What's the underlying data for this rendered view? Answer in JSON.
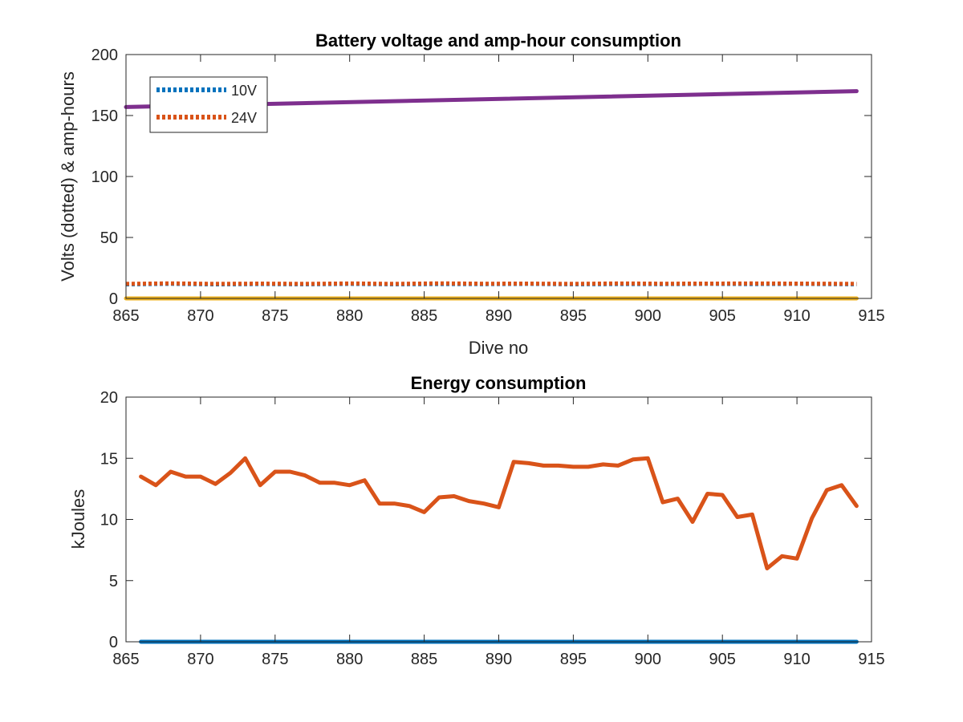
{
  "chart_data": [
    {
      "type": "line",
      "title": "Battery voltage and amp-hour consumption",
      "xlabel": "Dive no",
      "ylabel": "Volts (dotted) & amp-hours",
      "xlim": [
        865,
        915
      ],
      "ylim": [
        0,
        200
      ],
      "xticks": [
        "865",
        "870",
        "875",
        "880",
        "885",
        "890",
        "895",
        "900",
        "905",
        "910",
        "915"
      ],
      "yticks": [
        "0",
        "50",
        "100",
        "150",
        "200"
      ],
      "grid": false,
      "legend_position": "top-left",
      "series": [
        {
          "name": "10V",
          "style": "dotted",
          "color": "#0072BD",
          "x": [
            865,
            868,
            871,
            874,
            877,
            880,
            883,
            886,
            889,
            892,
            895,
            898,
            901,
            904,
            907,
            910,
            914
          ],
          "y": [
            11.5,
            12.0,
            11.5,
            11.8,
            11.6,
            11.9,
            11.6,
            11.8,
            11.7,
            11.9,
            11.6,
            11.8,
            11.7,
            11.9,
            11.8,
            11.9,
            11.6
          ]
        },
        {
          "name": "24V",
          "style": "dotted",
          "color": "#D95319",
          "x": [
            865,
            868,
            871,
            874,
            877,
            880,
            883,
            886,
            889,
            892,
            895,
            898,
            901,
            904,
            907,
            910,
            914
          ],
          "y": [
            12.0,
            12.4,
            12.0,
            12.2,
            12.0,
            12.3,
            12.0,
            12.4,
            12.1,
            12.2,
            12.0,
            12.3,
            12.1,
            12.2,
            12.3,
            12.2,
            12.0
          ]
        },
        {
          "style": "solid",
          "color": "#7E2F8E",
          "x": [
            865,
            914
          ],
          "y": [
            157,
            170
          ]
        },
        {
          "style": "solid",
          "color": "#EDB120",
          "x": [
            865,
            914
          ],
          "y": [
            0,
            0
          ]
        }
      ]
    },
    {
      "type": "line",
      "title": "Energy consumption",
      "xlabel": "",
      "ylabel": "kJoules",
      "xlim": [
        865,
        915
      ],
      "ylim": [
        0,
        20
      ],
      "xticks": [
        "865",
        "870",
        "875",
        "880",
        "885",
        "890",
        "895",
        "900",
        "905",
        "910",
        "915"
      ],
      "yticks": [
        "0",
        "5",
        "10",
        "15",
        "20"
      ],
      "grid": false,
      "series": [
        {
          "style": "solid",
          "color": "#D95319",
          "x": [
            866,
            867,
            868,
            869,
            870,
            871,
            872,
            873,
            874,
            875,
            876,
            877,
            878,
            879,
            880,
            881,
            882,
            883,
            884,
            885,
            886,
            887,
            888,
            889,
            890,
            891,
            892,
            893,
            894,
            895,
            896,
            897,
            898,
            899,
            900,
            901,
            902,
            903,
            904,
            905,
            906,
            907,
            908,
            909,
            910,
            911,
            912,
            913,
            914
          ],
          "y": [
            13.5,
            12.8,
            13.9,
            13.5,
            13.5,
            12.9,
            13.8,
            15.0,
            12.8,
            13.9,
            13.9,
            13.6,
            13.0,
            13.0,
            12.8,
            13.2,
            11.3,
            11.3,
            11.1,
            10.6,
            11.8,
            11.9,
            11.5,
            11.3,
            11.0,
            14.7,
            14.6,
            14.4,
            14.4,
            14.3,
            14.3,
            14.5,
            14.4,
            14.9,
            15.0,
            11.4,
            11.7,
            9.8,
            12.1,
            12.0,
            10.2,
            10.4,
            6.0,
            7.0,
            6.8,
            10.1,
            12.4,
            12.8,
            11.1
          ]
        },
        {
          "style": "solid",
          "color": "#0072BD",
          "x": [
            866,
            914
          ],
          "y": [
            0,
            0
          ]
        }
      ]
    }
  ]
}
